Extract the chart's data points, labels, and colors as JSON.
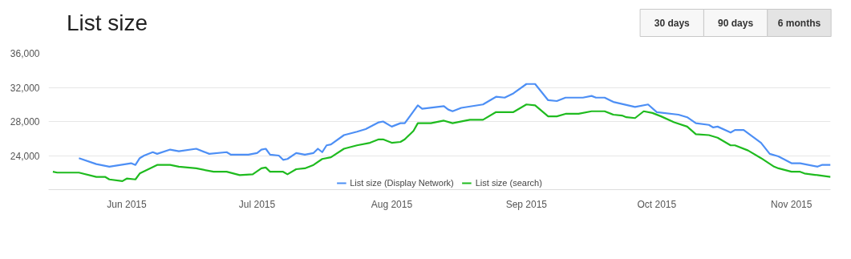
{
  "chart_data": {
    "type": "line",
    "title": "List size",
    "annotations": [
      "30 days",
      "90 days",
      "6 months"
    ],
    "xlim": [
      "2015-05-14",
      "2015-11-10"
    ],
    "xticks": [
      {
        "value": "2015-06-01",
        "label": "Jun 2015"
      },
      {
        "value": "2015-07-01",
        "label": "Jul 2015"
      },
      {
        "value": "2015-08-01",
        "label": "Aug 2015"
      },
      {
        "value": "2015-09-01",
        "label": "Sep 2015"
      },
      {
        "value": "2015-10-01",
        "label": "Oct 2015"
      },
      {
        "value": "2015-11-01",
        "label": "Nov 2015"
      }
    ],
    "ylim": [
      20000,
      36000
    ],
    "yticks": [
      {
        "value": 20000,
        "label": null
      },
      {
        "value": 24000,
        "label": "24,000"
      },
      {
        "value": 28000,
        "label": "28,000"
      },
      {
        "value": 32000,
        "label": "32,000"
      },
      {
        "value": 36000,
        "label": "36,000"
      }
    ],
    "grid": "y",
    "legend": "bottom",
    "marker": "none",
    "line_style": "solid",
    "series": [
      {
        "name": "List size (Display Network)",
        "color": "#4d8ff5",
        "x": [
          "2015-05-21",
          "2015-05-25",
          "2015-05-28",
          "2015-06-02",
          "2015-06-03",
          "2015-06-04",
          "2015-06-05",
          "2015-06-07",
          "2015-06-08",
          "2015-06-11",
          "2015-06-13",
          "2015-06-17",
          "2015-06-20",
          "2015-06-24",
          "2015-06-25",
          "2015-06-29",
          "2015-07-01",
          "2015-07-02",
          "2015-07-03",
          "2015-07-04",
          "2015-07-06",
          "2015-07-07",
          "2015-07-08",
          "2015-07-10",
          "2015-07-12",
          "2015-07-14",
          "2015-07-15",
          "2015-07-16",
          "2015-07-17",
          "2015-07-18",
          "2015-07-21",
          "2015-07-24",
          "2015-07-26",
          "2015-07-29",
          "2015-07-30",
          "2015-08-01",
          "2015-08-03",
          "2015-08-04",
          "2015-08-07",
          "2015-08-08",
          "2015-08-13",
          "2015-08-14",
          "2015-08-15",
          "2015-08-17",
          "2015-08-22",
          "2015-08-25",
          "2015-08-27",
          "2015-08-29",
          "2015-09-01",
          "2015-09-03",
          "2015-09-06",
          "2015-09-08",
          "2015-09-10",
          "2015-09-14",
          "2015-09-16",
          "2015-09-17",
          "2015-09-19",
          "2015-09-21",
          "2015-09-26",
          "2015-09-29",
          "2015-10-01",
          "2015-10-06",
          "2015-10-08",
          "2015-10-10",
          "2015-10-13",
          "2015-10-14",
          "2015-10-15",
          "2015-10-18",
          "2015-10-19",
          "2015-10-21",
          "2015-10-25",
          "2015-10-27",
          "2015-10-29",
          "2015-11-01",
          "2015-11-03",
          "2015-11-07",
          "2015-11-08",
          "2015-11-10"
        ],
        "values": [
          23700,
          23000,
          22700,
          23100,
          22900,
          23700,
          24000,
          24400,
          24200,
          24700,
          24500,
          24800,
          24200,
          24400,
          24100,
          24100,
          24300,
          24700,
          24800,
          24100,
          24000,
          23500,
          23600,
          24300,
          24100,
          24300,
          24800,
          24400,
          25200,
          25300,
          26400,
          26800,
          27100,
          27900,
          28000,
          27400,
          27800,
          27800,
          29900,
          29500,
          29800,
          29400,
          29200,
          29600,
          30000,
          30900,
          30800,
          31300,
          32400,
          32400,
          30500,
          30400,
          30800,
          30800,
          31000,
          30800,
          30800,
          30300,
          29700,
          30000,
          29100,
          28800,
          28500,
          27800,
          27600,
          27300,
          27400,
          26700,
          27000,
          27000,
          25500,
          24200,
          23900,
          23100,
          23100,
          22700,
          22900,
          22900
        ]
      },
      {
        "name": "List size (search)",
        "color": "#1fbb1f",
        "x": [
          "2015-05-15",
          "2015-05-16",
          "2015-05-21",
          "2015-05-25",
          "2015-05-27",
          "2015-05-28",
          "2015-05-31",
          "2015-06-01",
          "2015-06-03",
          "2015-06-04",
          "2015-06-06",
          "2015-06-08",
          "2015-06-11",
          "2015-06-13",
          "2015-06-17",
          "2015-06-21",
          "2015-06-24",
          "2015-06-27",
          "2015-06-30",
          "2015-07-02",
          "2015-07-03",
          "2015-07-04",
          "2015-07-07",
          "2015-07-08",
          "2015-07-10",
          "2015-07-12",
          "2015-07-14",
          "2015-07-16",
          "2015-07-18",
          "2015-07-21",
          "2015-07-24",
          "2015-07-27",
          "2015-07-29",
          "2015-07-30",
          "2015-08-01",
          "2015-08-03",
          "2015-08-04",
          "2015-08-06",
          "2015-08-07",
          "2015-08-10",
          "2015-08-13",
          "2015-08-15",
          "2015-08-18",
          "2015-08-19",
          "2015-08-22",
          "2015-08-25",
          "2015-08-29",
          "2015-09-01",
          "2015-09-03",
          "2015-09-06",
          "2015-09-08",
          "2015-09-10",
          "2015-09-13",
          "2015-09-16",
          "2015-09-19",
          "2015-09-21",
          "2015-09-23",
          "2015-09-24",
          "2015-09-26",
          "2015-09-28",
          "2015-09-30",
          "2015-10-02",
          "2015-10-05",
          "2015-10-08",
          "2015-10-10",
          "2015-10-13",
          "2015-10-15",
          "2015-10-18",
          "2015-10-19",
          "2015-10-22",
          "2015-10-25",
          "2015-10-28",
          "2015-10-29",
          "2015-11-01",
          "2015-11-03",
          "2015-11-04",
          "2015-11-07",
          "2015-11-10"
        ],
        "values": [
          22100,
          22000,
          22000,
          21500,
          21500,
          21200,
          21000,
          21300,
          21200,
          21900,
          22400,
          22900,
          22900,
          22700,
          22500,
          22100,
          22100,
          21700,
          21800,
          22500,
          22600,
          22100,
          22100,
          21800,
          22400,
          22500,
          22900,
          23600,
          23800,
          24800,
          25200,
          25500,
          25900,
          25900,
          25500,
          25600,
          25900,
          26900,
          27800,
          27800,
          28100,
          27800,
          28100,
          28200,
          28200,
          29100,
          29100,
          30000,
          29900,
          28600,
          28600,
          28900,
          28900,
          29200,
          29200,
          28800,
          28700,
          28500,
          28400,
          29200,
          29000,
          28600,
          27900,
          27400,
          26500,
          26400,
          26100,
          25200,
          25200,
          24600,
          23700,
          22700,
          22500,
          22100,
          22100,
          21900,
          21700,
          21500
        ]
      }
    ]
  }
}
